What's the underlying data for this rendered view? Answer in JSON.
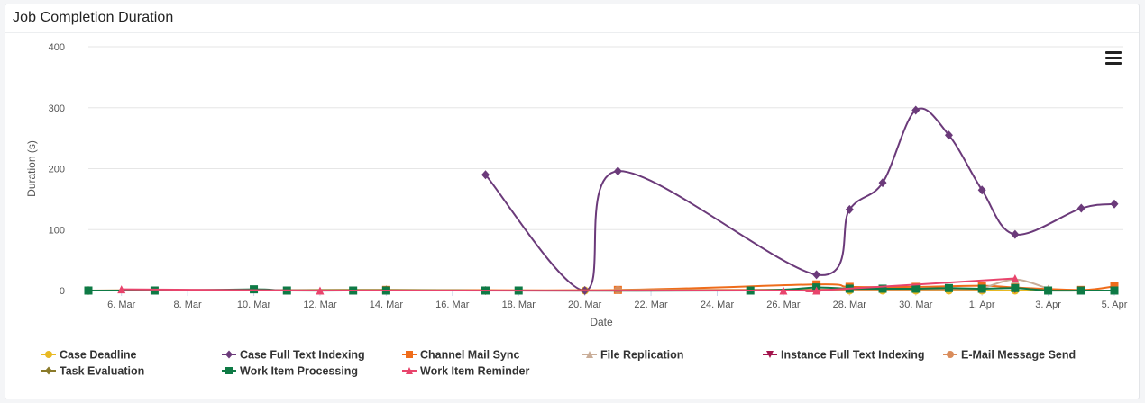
{
  "panel": {
    "title": "Job Completion Duration"
  },
  "menu": {
    "icon": "hamburger-menu-icon"
  },
  "chart_data": {
    "type": "line",
    "title": "",
    "xlabel": "Date",
    "ylabel": "Duration (s)",
    "ylim": [
      0,
      400
    ],
    "yticks": [
      0,
      100,
      200,
      300,
      400
    ],
    "xlim": [
      "2021-03-05",
      "2021-04-05"
    ],
    "xticks": [
      {
        "date": "2021-03-06",
        "label": "6. Mar"
      },
      {
        "date": "2021-03-08",
        "label": "8. Mar"
      },
      {
        "date": "2021-03-10",
        "label": "10. Mar"
      },
      {
        "date": "2021-03-12",
        "label": "12. Mar"
      },
      {
        "date": "2021-03-14",
        "label": "14. Mar"
      },
      {
        "date": "2021-03-16",
        "label": "16. Mar"
      },
      {
        "date": "2021-03-18",
        "label": "18. Mar"
      },
      {
        "date": "2021-03-20",
        "label": "20. Mar"
      },
      {
        "date": "2021-03-22",
        "label": "22. Mar"
      },
      {
        "date": "2021-03-24",
        "label": "24. Mar"
      },
      {
        "date": "2021-03-26",
        "label": "26. Mar"
      },
      {
        "date": "2021-03-28",
        "label": "28. Mar"
      },
      {
        "date": "2021-03-30",
        "label": "30. Mar"
      },
      {
        "date": "2021-04-01",
        "label": "1. Apr"
      },
      {
        "date": "2021-04-03",
        "label": "3. Apr"
      },
      {
        "date": "2021-04-05",
        "label": "5. Apr"
      }
    ],
    "grid": true,
    "legend": "bottom",
    "series": [
      {
        "name": "Case Deadline",
        "color": "#e8b923",
        "marker": "circle",
        "points": [
          [
            "2021-03-20",
            0
          ],
          [
            "2021-03-27",
            0
          ],
          [
            "2021-03-28",
            0
          ],
          [
            "2021-03-29",
            0
          ],
          [
            "2021-03-30",
            0
          ],
          [
            "2021-03-31",
            0
          ],
          [
            "2021-04-01",
            0
          ],
          [
            "2021-04-02",
            0
          ],
          [
            "2021-04-04",
            0
          ]
        ]
      },
      {
        "name": "Case Full Text Indexing",
        "color": "#6b3a7a",
        "marker": "diamond",
        "points": [
          [
            "2021-03-17",
            190
          ],
          [
            "2021-03-20",
            0
          ],
          [
            "2021-03-21",
            196
          ],
          [
            "2021-03-27",
            26
          ],
          [
            "2021-03-28",
            133
          ],
          [
            "2021-03-29",
            177
          ],
          [
            "2021-03-30",
            296
          ],
          [
            "2021-03-31",
            255
          ],
          [
            "2021-04-01",
            165
          ],
          [
            "2021-04-02",
            92
          ],
          [
            "2021-04-04",
            135
          ],
          [
            "2021-04-05",
            142
          ]
        ]
      },
      {
        "name": "Channel Mail Sync",
        "color": "#ef6c1a",
        "marker": "square",
        "points": [
          [
            "2021-03-05",
            0
          ],
          [
            "2021-03-14",
            1
          ],
          [
            "2021-03-21",
            1
          ],
          [
            "2021-03-27",
            10
          ],
          [
            "2021-03-28",
            6
          ],
          [
            "2021-03-30",
            6
          ],
          [
            "2021-04-01",
            8
          ],
          [
            "2021-04-02",
            5
          ],
          [
            "2021-04-04",
            1
          ],
          [
            "2021-04-05",
            7
          ]
        ]
      },
      {
        "name": "File Replication",
        "color": "#c9ad98",
        "marker": "triangle",
        "points": [
          [
            "2021-04-01",
            3
          ],
          [
            "2021-04-02",
            18
          ],
          [
            "2021-04-03",
            3
          ]
        ]
      },
      {
        "name": "Instance Full Text Indexing",
        "color": "#a3154d",
        "marker": "triangle-down",
        "points": [
          [
            "2021-04-02",
            2
          ]
        ]
      },
      {
        "name": "E-Mail Message Send",
        "color": "#d98c5b",
        "marker": "circle",
        "points": [
          [
            "2021-03-21",
            1
          ],
          [
            "2021-04-01",
            2
          ]
        ]
      },
      {
        "name": "Task Evaluation",
        "color": "#8a7a2a",
        "marker": "diamond",
        "points": [
          [
            "2021-03-05",
            0
          ],
          [
            "2021-03-14",
            1
          ],
          [
            "2021-03-17",
            0
          ]
        ]
      },
      {
        "name": "Work Item Processing",
        "color": "#0e7a45",
        "marker": "square",
        "points": [
          [
            "2021-03-05",
            0
          ],
          [
            "2021-03-07",
            0
          ],
          [
            "2021-03-10",
            2
          ],
          [
            "2021-03-11",
            0
          ],
          [
            "2021-03-13",
            0
          ],
          [
            "2021-03-14",
            0
          ],
          [
            "2021-03-17",
            0
          ],
          [
            "2021-03-18",
            0
          ],
          [
            "2021-03-25",
            0
          ],
          [
            "2021-03-27",
            5
          ],
          [
            "2021-03-28",
            3
          ],
          [
            "2021-03-29",
            3
          ],
          [
            "2021-03-30",
            3
          ],
          [
            "2021-03-31",
            4
          ],
          [
            "2021-04-01",
            3
          ],
          [
            "2021-04-02",
            4
          ],
          [
            "2021-04-03",
            0
          ],
          [
            "2021-04-04",
            0
          ],
          [
            "2021-04-05",
            0
          ]
        ]
      },
      {
        "name": "Work Item Reminder",
        "color": "#e8446c",
        "marker": "triangle",
        "points": [
          [
            "2021-03-06",
            2
          ],
          [
            "2021-03-12",
            0
          ],
          [
            "2021-03-26",
            0
          ],
          [
            "2021-03-27",
            0
          ],
          [
            "2021-04-02",
            20
          ]
        ]
      }
    ]
  }
}
